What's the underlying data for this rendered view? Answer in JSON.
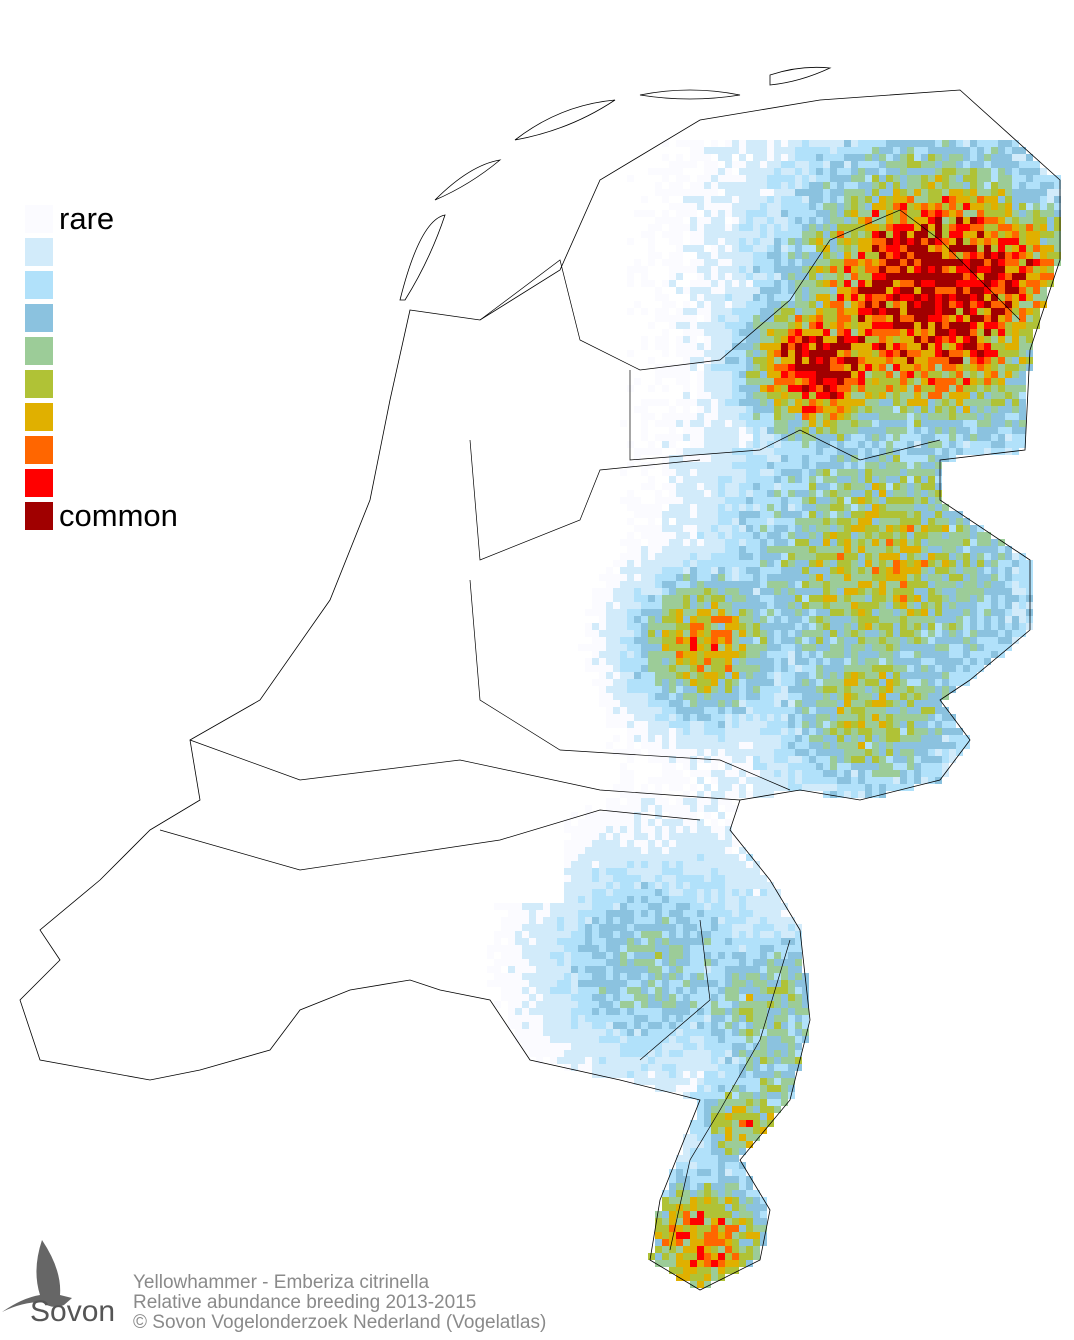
{
  "legend": {
    "items": [
      {
        "color": "#fbfbff",
        "label": "rare"
      },
      {
        "color": "#d2ebfa",
        "label": ""
      },
      {
        "color": "#b1e1fa",
        "label": ""
      },
      {
        "color": "#8bc2df",
        "label": ""
      },
      {
        "color": "#9ccc98",
        "label": ""
      },
      {
        "color": "#b0c236",
        "label": ""
      },
      {
        "color": "#e0b000",
        "label": ""
      },
      {
        "color": "#ff6600",
        "label": ""
      },
      {
        "color": "#ff0000",
        "label": ""
      },
      {
        "color": "#a00000",
        "label": "common"
      }
    ]
  },
  "caption": {
    "species": "Yellowhammer - Emberiza citrinella",
    "subtitle": "Relative abundance breeding 2013-2015",
    "copyright": "© Sovon Vogelonderzoek Nederland (Vogelatlas)"
  },
  "logo": {
    "text": "Sovon",
    "icon": "swallow-icon"
  }
}
